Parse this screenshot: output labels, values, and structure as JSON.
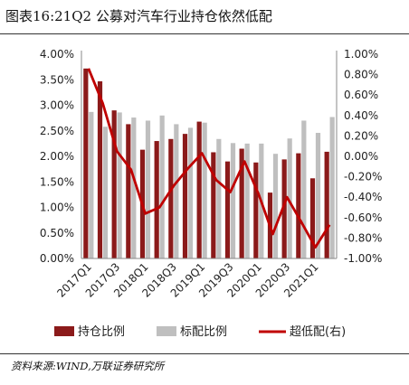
{
  "title": "图表16:21Q2 公募对汽车行业持仓依然低配",
  "source": "资料来源:WIND,万联证券研究所",
  "colors": {
    "holding": "#8b1a1a",
    "benchmark": "#bfbfbf",
    "overweight": "#c00000"
  },
  "chart_data": {
    "type": "bar",
    "title": "",
    "x": [
      "2017Q1",
      "2017Q2",
      "2017Q3",
      "2017Q4",
      "2018Q1",
      "2018Q2",
      "2018Q3",
      "2018Q4",
      "2019Q1",
      "2019Q2",
      "2019Q3",
      "2019Q4",
      "2020Q1",
      "2020Q2",
      "2020Q3",
      "2020Q4",
      "2021Q1",
      "2021Q2"
    ],
    "x_tick_labels": [
      "2017Q1",
      "2017Q3",
      "2018Q1",
      "2018Q3",
      "2019Q1",
      "2019Q3",
      "2020Q1",
      "2020Q3",
      "2021Q1"
    ],
    "series": [
      {
        "name": "持仓比例",
        "type": "bar",
        "axis": "left",
        "values": [
          3.72,
          3.47,
          2.9,
          2.63,
          2.13,
          2.3,
          2.34,
          2.44,
          2.68,
          2.08,
          1.9,
          2.15,
          1.88,
          1.29,
          1.94,
          2.06,
          1.57,
          2.09
        ]
      },
      {
        "name": "标配比例",
        "type": "bar",
        "axis": "left",
        "values": [
          2.87,
          2.58,
          2.86,
          2.76,
          2.7,
          2.8,
          2.63,
          2.56,
          2.66,
          2.34,
          2.26,
          2.25,
          2.25,
          2.05,
          2.35,
          2.7,
          2.46,
          2.77
        ]
      },
      {
        "name": "超低配(右)",
        "type": "line",
        "axis": "right",
        "values": [
          0.86,
          0.52,
          0.05,
          -0.13,
          -0.56,
          -0.5,
          -0.29,
          -0.12,
          0.03,
          -0.23,
          -0.35,
          -0.05,
          -0.37,
          -0.76,
          -0.4,
          -0.64,
          -0.89,
          -0.67
        ]
      }
    ],
    "left_axis": {
      "min": 0,
      "max": 4.0,
      "step": 0.5,
      "tick_labels": [
        "0.00%",
        "0.50%",
        "1.00%",
        "1.50%",
        "2.00%",
        "2.50%",
        "3.00%",
        "3.50%",
        "4.00%"
      ]
    },
    "right_axis": {
      "min": -1.0,
      "max": 1.0,
      "step": 0.2,
      "tick_labels": [
        "-1.00%",
        "-0.80%",
        "-0.60%",
        "-0.40%",
        "-0.20%",
        "0.00%",
        "0.20%",
        "0.40%",
        "0.60%",
        "0.80%",
        "1.00%"
      ]
    },
    "grid": false,
    "legend_position": "bottom"
  }
}
